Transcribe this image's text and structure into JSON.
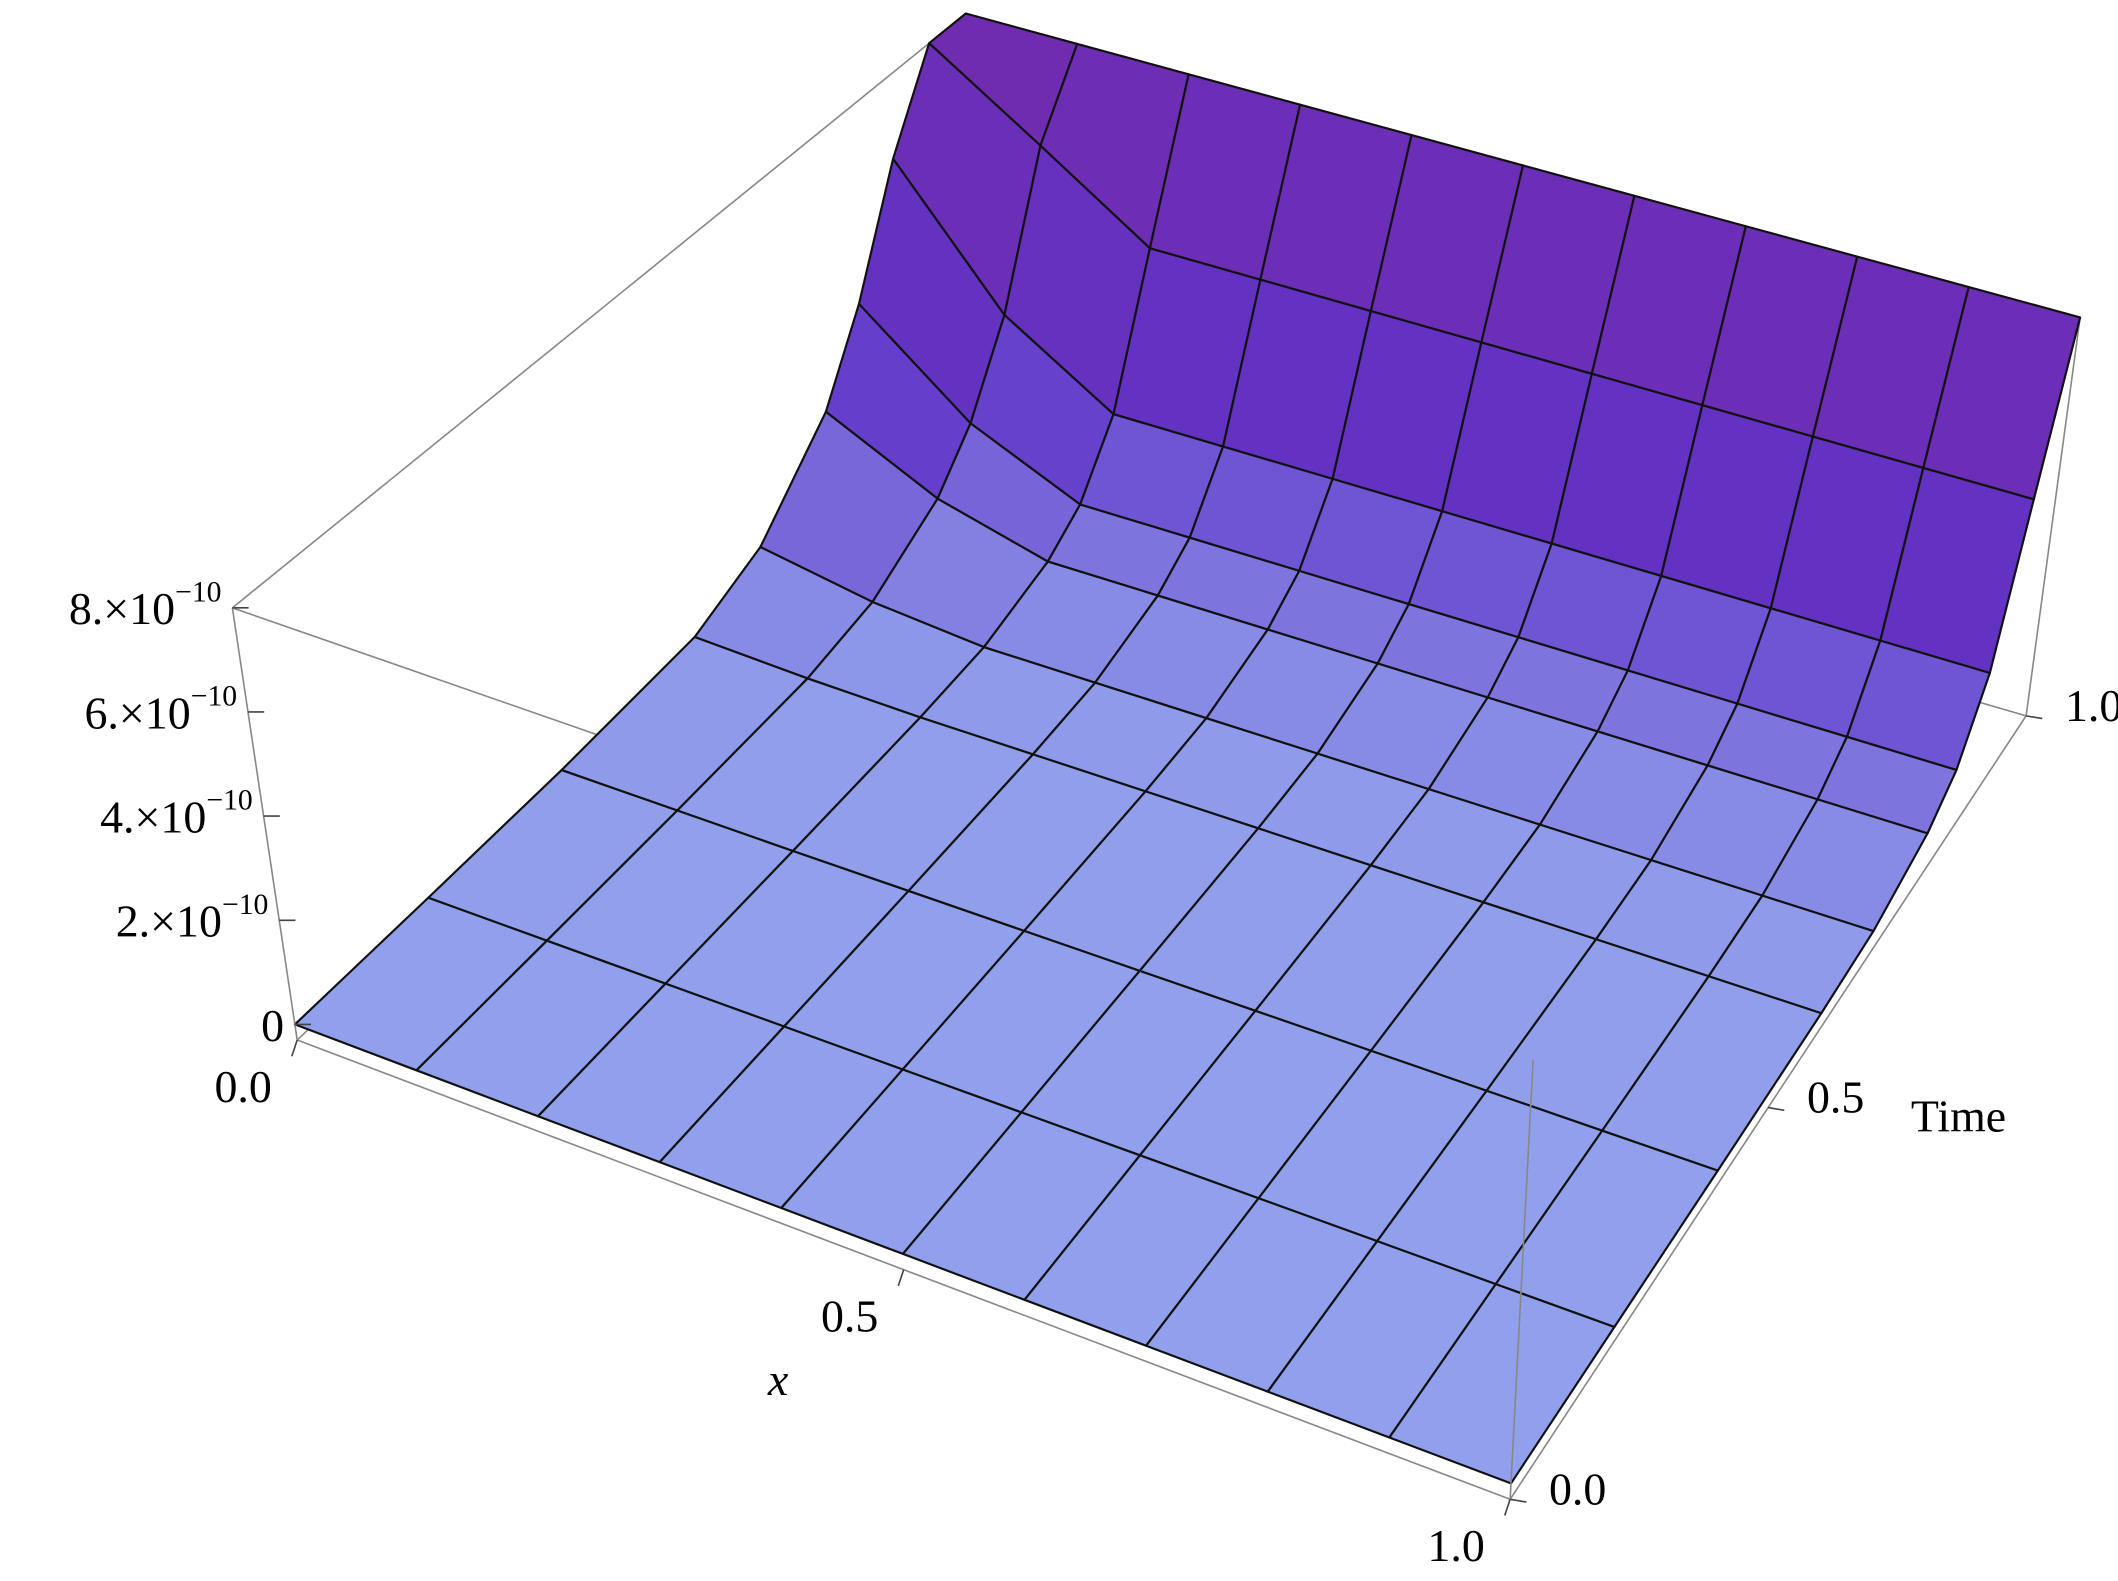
{
  "chart_data": {
    "type": "surface3d",
    "xlabel": "x",
    "tlabel": "Time",
    "x": [
      0,
      0.1,
      0.2,
      0.3,
      0.4,
      0.5,
      0.6,
      0.7,
      0.8,
      0.9,
      1.0
    ],
    "t": [
      0,
      0.2,
      0.4,
      0.6,
      0.7,
      0.8,
      0.85,
      0.9,
      0.95,
      1.0
    ],
    "z": [
      [
        0,
        0,
        0,
        0,
        0,
        0,
        0,
        0,
        0,
        0,
        0
      ],
      [
        0,
        0,
        0,
        0,
        0,
        0,
        0,
        0,
        0,
        0,
        0
      ],
      [
        2e-12,
        1e-12,
        0,
        0,
        0,
        0,
        0,
        0,
        0,
        0,
        0
      ],
      [
        1.5e-11,
        6e-12,
        2e-12,
        2e-12,
        2e-12,
        2e-12,
        2e-12,
        2e-12,
        2e-12,
        2e-12,
        2e-12
      ],
      [
        7e-11,
        3e-11,
        1e-11,
        1e-11,
        1e-11,
        1e-11,
        1e-11,
        1e-11,
        1e-11,
        1e-11,
        1e-11
      ],
      [
        2.2e-10,
        1.1e-10,
        5e-11,
        5e-11,
        5e-11,
        5e-11,
        5e-11,
        5e-11,
        5e-11,
        5e-11,
        5e-11
      ],
      [
        3.8e-10,
        2e-10,
        1e-10,
        1e-10,
        1e-10,
        1e-10,
        1e-10,
        1e-10,
        1e-10,
        1e-10,
        1e-10
      ],
      [
        6.2e-10,
        3.6e-10,
        2.2e-10,
        2.2e-10,
        2.2e-10,
        2.2e-10,
        2.2e-10,
        2.2e-10,
        2.2e-10,
        2.2e-10,
        2.2e-10
      ],
      [
        8e-10,
        6.5e-10,
        5e-10,
        5e-10,
        5e-10,
        5e-10,
        5e-10,
        5e-10,
        5e-10,
        5e-10,
        5e-10
      ],
      [
        8e-10,
        8e-10,
        8e-10,
        8e-10,
        8e-10,
        8e-10,
        8e-10,
        8e-10,
        8e-10,
        8e-10,
        8e-10
      ]
    ],
    "xlim": [
      0,
      1
    ],
    "tlim": [
      0,
      1
    ],
    "zlim": [
      -3e-11,
      8e-10
    ],
    "xticks": [
      {
        "value": 0,
        "label": "0.0"
      },
      {
        "value": 0.5,
        "label": "0.5"
      },
      {
        "value": 1,
        "label": "1.0"
      }
    ],
    "tticks": [
      {
        "value": 0,
        "label": "0.0"
      },
      {
        "value": 0.5,
        "label": "0.5"
      },
      {
        "value": 1,
        "label": "1.0"
      }
    ],
    "zticks": [
      {
        "value": 0,
        "label": "0"
      },
      {
        "value": 2e-10,
        "label": "2.×10",
        "label_exponent": "−10"
      },
      {
        "value": 4e-10,
        "label": "4.×10",
        "label_exponent": "−10"
      },
      {
        "value": 6e-10,
        "label": "6.×10",
        "label_exponent": "−10"
      },
      {
        "value": 8e-10,
        "label": "8.×10",
        "label_exponent": "−10"
      }
    ]
  }
}
